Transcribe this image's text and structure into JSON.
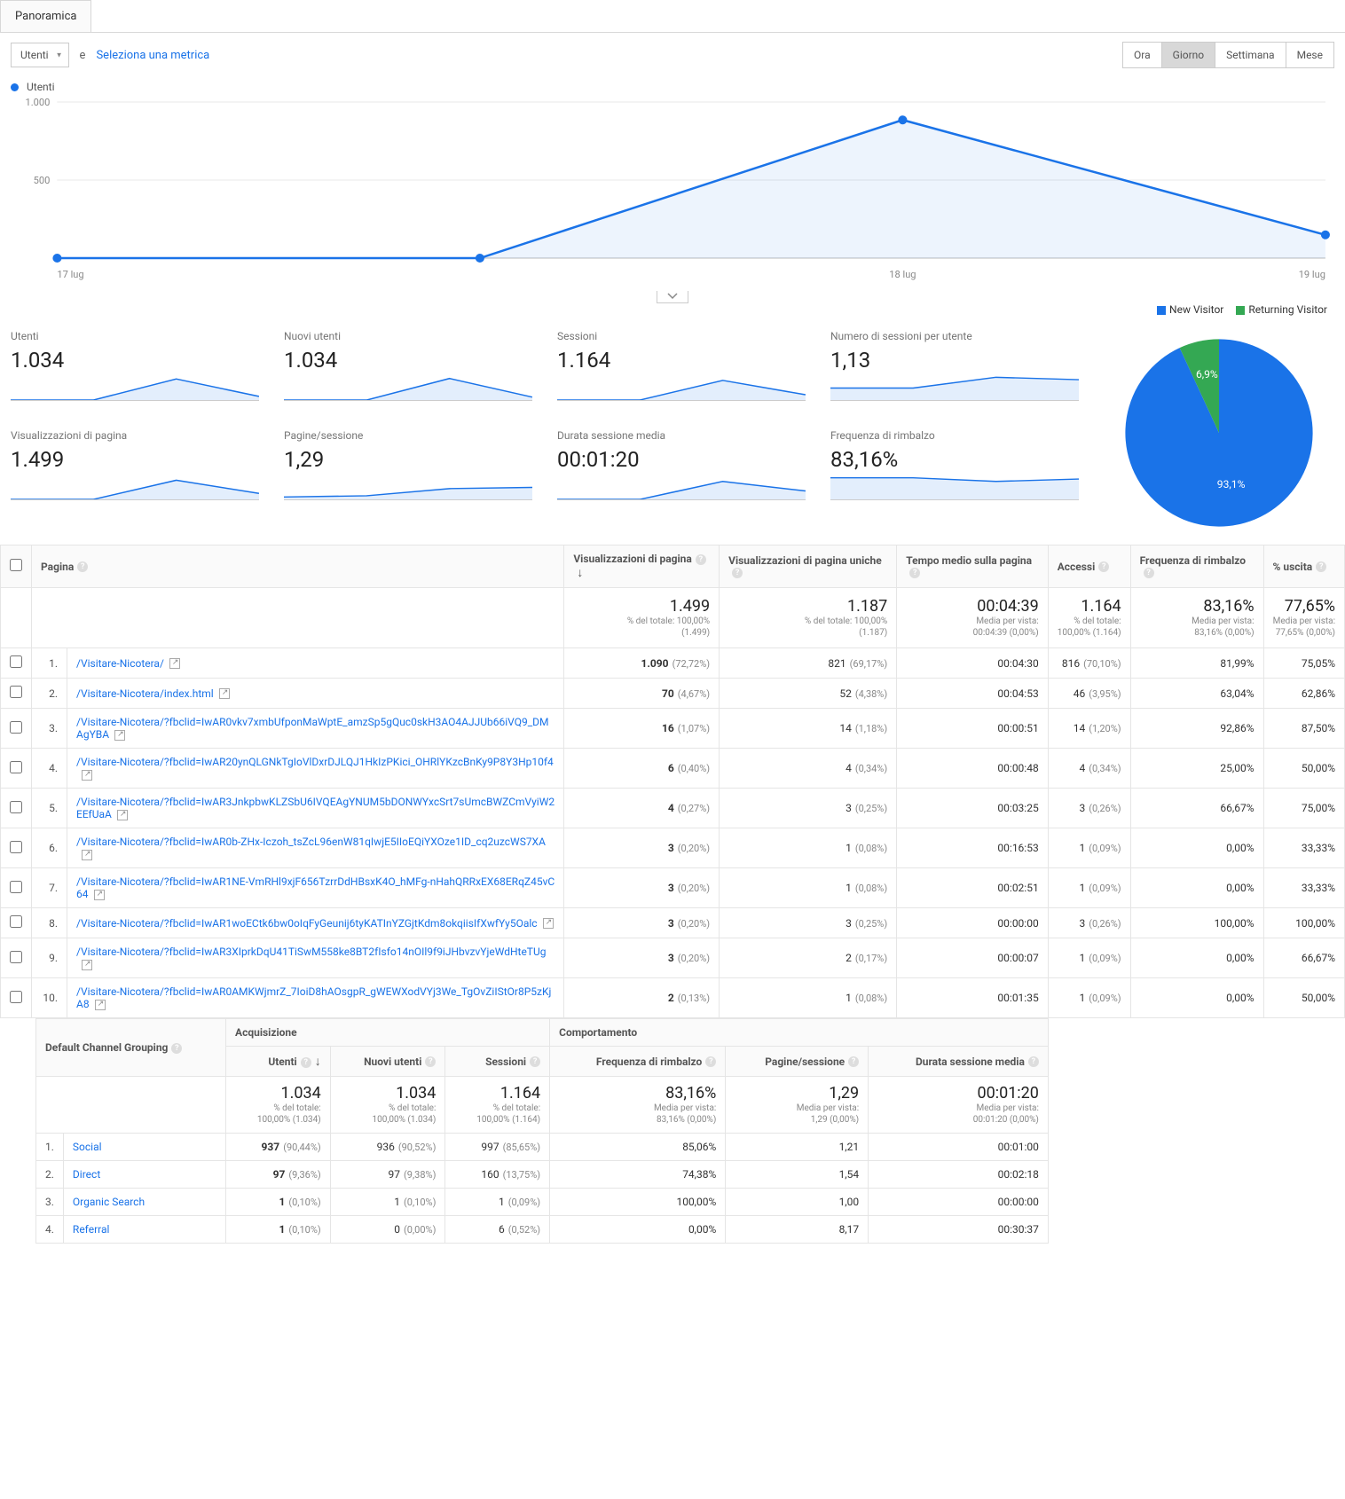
{
  "tabs": {
    "overview": "Panoramica"
  },
  "toolbar": {
    "metric_dropdown": "Utenti",
    "e": "e",
    "select_metric": "Seleziona una metrica",
    "time": {
      "hour": "Ora",
      "day": "Giorno",
      "week": "Settimana",
      "month": "Mese",
      "active": "day"
    }
  },
  "line_chart": {
    "legend_label": "Utenti",
    "legend_color": "#1a73e8",
    "y_ticks": [
      "1.000",
      "500"
    ],
    "y_max": 1000,
    "x_labels": [
      "17 lug",
      "18 lug",
      "19 lug"
    ],
    "points": [
      0,
      0,
      885,
      149
    ],
    "line_color": "#1a73e8",
    "fill_color": "rgba(26,115,232,0.08)",
    "grid_color": "#e8e8e8"
  },
  "pie": {
    "legend": [
      {
        "label": "New Visitor",
        "color": "#1a73e8"
      },
      {
        "label": "Returning Visitor",
        "color": "#34a853"
      }
    ],
    "slices": [
      {
        "pct": 93.1,
        "color": "#1a73e8",
        "label": "93,1%"
      },
      {
        "pct": 6.9,
        "color": "#34a853",
        "label": "6,9%"
      }
    ]
  },
  "metrics": [
    {
      "label": "Utenti",
      "value": "1.034",
      "spark": [
        0,
        0,
        0.88,
        0.15
      ]
    },
    {
      "label": "Nuovi utenti",
      "value": "1.034",
      "spark": [
        0,
        0,
        0.9,
        0.12
      ]
    },
    {
      "label": "Sessioni",
      "value": "1.164",
      "spark": [
        0,
        0,
        0.82,
        0.22
      ]
    },
    {
      "label": "Numero di sessioni per utente",
      "value": "1,13",
      "spark": [
        0.5,
        0.5,
        0.95,
        0.85
      ]
    },
    {
      "label": "Visualizzazioni di pagina",
      "value": "1.499",
      "spark": [
        0,
        0,
        0.8,
        0.25
      ]
    },
    {
      "label": "Pagine/sessione",
      "value": "1,29",
      "spark": [
        0.1,
        0.15,
        0.45,
        0.5
      ]
    },
    {
      "label": "Durata sessione media",
      "value": "00:01:20",
      "spark": [
        0,
        0,
        0.75,
        0.35
      ]
    },
    {
      "label": "Frequenza di rimbalzo",
      "value": "83,16%",
      "spark": [
        0.9,
        0.9,
        0.75,
        0.85
      ]
    }
  ],
  "pages_table": {
    "headers": {
      "page": "Pagina",
      "views": "Visualizzazioni di pagina",
      "unique_views": "Visualizzazioni di pagina uniche",
      "avg_time": "Tempo medio sulla pagina",
      "entrances": "Accessi",
      "bounce": "Frequenza di rimbalzo",
      "exit": "% uscita"
    },
    "totals": {
      "views": {
        "big": "1.499",
        "sub1": "% del totale: 100,00%",
        "sub2": "(1.499)"
      },
      "unique_views": {
        "big": "1.187",
        "sub1": "% del totale: 100,00%",
        "sub2": "(1.187)"
      },
      "avg_time": {
        "big": "00:04:39",
        "sub1": "Media per vista:",
        "sub2": "00:04:39 (0,00%)"
      },
      "entrances": {
        "big": "1.164",
        "sub1": "% del totale:",
        "sub2": "100,00% (1.164)"
      },
      "bounce": {
        "big": "83,16%",
        "sub1": "Media per vista:",
        "sub2": "83,16% (0,00%)"
      },
      "exit": {
        "big": "77,65%",
        "sub1": "Media per vista:",
        "sub2": "77,65% (0,00%)"
      }
    },
    "rows": [
      {
        "n": "1.",
        "page": "/Visitare-Nicotera/",
        "views": "1.090",
        "views_pct": "(72,72%)",
        "uviews": "821",
        "uviews_pct": "(69,17%)",
        "time": "00:04:30",
        "entr": "816",
        "entr_pct": "(70,10%)",
        "bounce": "81,99%",
        "exit": "75,05%"
      },
      {
        "n": "2.",
        "page": "/Visitare-Nicotera/index.html",
        "views": "70",
        "views_pct": "(4,67%)",
        "uviews": "52",
        "uviews_pct": "(4,38%)",
        "time": "00:04:53",
        "entr": "46",
        "entr_pct": "(3,95%)",
        "bounce": "63,04%",
        "exit": "62,86%"
      },
      {
        "n": "3.",
        "page": "/Visitare-Nicotera/?fbclid=IwAR0vkv7xmbUfponMaWptE_amzSp5gQuc0skH3AO4AJJUb66iVQ9_DMAgYBA",
        "views": "16",
        "views_pct": "(1,07%)",
        "uviews": "14",
        "uviews_pct": "(1,18%)",
        "time": "00:00:51",
        "entr": "14",
        "entr_pct": "(1,20%)",
        "bounce": "92,86%",
        "exit": "87,50%"
      },
      {
        "n": "4.",
        "page": "/Visitare-Nicotera/?fbclid=IwAR20ynQLGNkTgIoVlDxrDJLQJ1HkIzPKici_OHRlYKzcBnKy9P8Y3Hp10f4",
        "views": "6",
        "views_pct": "(0,40%)",
        "uviews": "4",
        "uviews_pct": "(0,34%)",
        "time": "00:00:48",
        "entr": "4",
        "entr_pct": "(0,34%)",
        "bounce": "25,00%",
        "exit": "50,00%"
      },
      {
        "n": "5.",
        "page": "/Visitare-Nicotera/?fbclid=IwAR3JnkpbwKLZSbU6IVQEAgYNUM5bDONWYxcSrt7sUmcBWZCmVyiW2EEfUaA",
        "views": "4",
        "views_pct": "(0,27%)",
        "uviews": "3",
        "uviews_pct": "(0,25%)",
        "time": "00:03:25",
        "entr": "3",
        "entr_pct": "(0,26%)",
        "bounce": "66,67%",
        "exit": "75,00%"
      },
      {
        "n": "6.",
        "page": "/Visitare-Nicotera/?fbclid=IwAR0b-ZHx-Iczoh_tsZcL96enW81qIwjE5IIoEQiYXOze1ID_cq2uzcWS7XA",
        "views": "3",
        "views_pct": "(0,20%)",
        "uviews": "1",
        "uviews_pct": "(0,08%)",
        "time": "00:16:53",
        "entr": "1",
        "entr_pct": "(0,09%)",
        "bounce": "0,00%",
        "exit": "33,33%"
      },
      {
        "n": "7.",
        "page": "/Visitare-Nicotera/?fbclid=IwAR1NE-VmRHl9xjF656TzrrDdHBsxK4O_hMFg-nHahQRRxEX68ERqZ45vC64",
        "views": "3",
        "views_pct": "(0,20%)",
        "uviews": "1",
        "uviews_pct": "(0,08%)",
        "time": "00:02:51",
        "entr": "1",
        "entr_pct": "(0,09%)",
        "bounce": "0,00%",
        "exit": "33,33%"
      },
      {
        "n": "8.",
        "page": "/Visitare-Nicotera/?fbclid=IwAR1woECtk6bw0oIqFyGeunij6tyKATInYZGjtKdm8okqiisIfXwfYy5Oalc",
        "views": "3",
        "views_pct": "(0,20%)",
        "uviews": "3",
        "uviews_pct": "(0,25%)",
        "time": "00:00:00",
        "entr": "3",
        "entr_pct": "(0,26%)",
        "bounce": "100,00%",
        "exit": "100,00%"
      },
      {
        "n": "9.",
        "page": "/Visitare-Nicotera/?fbclid=IwAR3XIprkDqU41TiSwM558ke8BT2fIsfo14nOIl9f9iJHbvzvYjeWdHteTUg",
        "views": "3",
        "views_pct": "(0,20%)",
        "uviews": "2",
        "uviews_pct": "(0,17%)",
        "time": "00:00:07",
        "entr": "1",
        "entr_pct": "(0,09%)",
        "bounce": "0,00%",
        "exit": "66,67%"
      },
      {
        "n": "10.",
        "page": "/Visitare-Nicotera/?fbclid=IwAR0AMKWjmrZ_7IoiD8hAOsgpR_gWEWXodVYj3We_TgOvZiIStOr8P5zKjA8",
        "views": "2",
        "views_pct": "(0,13%)",
        "uviews": "1",
        "uviews_pct": "(0,08%)",
        "time": "00:01:35",
        "entr": "1",
        "entr_pct": "(0,09%)",
        "bounce": "0,00%",
        "exit": "50,00%"
      }
    ]
  },
  "channel_table": {
    "dim_header": "Default Channel Grouping",
    "groups": {
      "acq": "Acquisizione",
      "beh": "Comportamento"
    },
    "headers": {
      "users": "Utenti",
      "new_users": "Nuovi utenti",
      "sessions": "Sessioni",
      "bounce": "Frequenza di rimbalzo",
      "pps": "Pagine/sessione",
      "avg_dur": "Durata sessione media"
    },
    "totals": {
      "users": {
        "big": "1.034",
        "sub1": "% del totale:",
        "sub2": "100,00% (1.034)"
      },
      "new_users": {
        "big": "1.034",
        "sub1": "% del totale:",
        "sub2": "100,00% (1.034)"
      },
      "sessions": {
        "big": "1.164",
        "sub1": "% del totale:",
        "sub2": "100,00% (1.164)"
      },
      "bounce": {
        "big": "83,16%",
        "sub1": "Media per vista:",
        "sub2": "83,16% (0,00%)"
      },
      "pps": {
        "big": "1,29",
        "sub1": "Media per vista:",
        "sub2": "1,29 (0,00%)"
      },
      "avg_dur": {
        "big": "00:01:20",
        "sub1": "Media per vista:",
        "sub2": "00:01:20 (0,00%)"
      }
    },
    "rows": [
      {
        "n": "1.",
        "channel": "Social",
        "users": "937",
        "users_pct": "(90,44%)",
        "nusers": "936",
        "nusers_pct": "(90,52%)",
        "sess": "997",
        "sess_pct": "(85,65%)",
        "bounce": "85,06%",
        "pps": "1,21",
        "dur": "00:01:00"
      },
      {
        "n": "2.",
        "channel": "Direct",
        "users": "97",
        "users_pct": "(9,36%)",
        "nusers": "97",
        "nusers_pct": "(9,38%)",
        "sess": "160",
        "sess_pct": "(13,75%)",
        "bounce": "74,38%",
        "pps": "1,54",
        "dur": "00:02:18"
      },
      {
        "n": "3.",
        "channel": "Organic Search",
        "users": "1",
        "users_pct": "(0,10%)",
        "nusers": "1",
        "nusers_pct": "(0,10%)",
        "sess": "1",
        "sess_pct": "(0,09%)",
        "bounce": "100,00%",
        "pps": "1,00",
        "dur": "00:00:00"
      },
      {
        "n": "4.",
        "channel": "Referral",
        "users": "1",
        "users_pct": "(0,10%)",
        "nusers": "0",
        "nusers_pct": "(0,00%)",
        "sess": "6",
        "sess_pct": "(0,52%)",
        "bounce": "0,00%",
        "pps": "8,17",
        "dur": "00:30:37"
      }
    ]
  }
}
